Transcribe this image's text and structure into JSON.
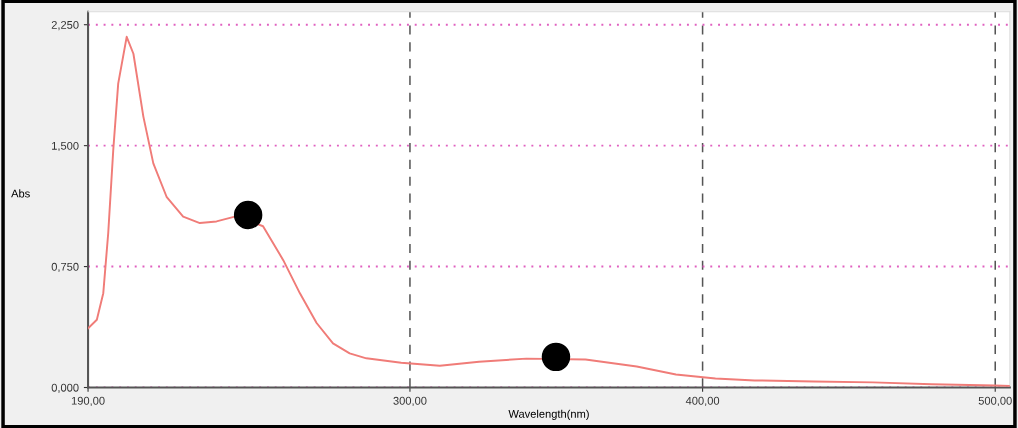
{
  "chart_data": {
    "type": "line",
    "xlabel": "Wavelength(nm)",
    "ylabel": "Abs",
    "xlim": [
      190,
      505
    ],
    "ylim": [
      0,
      2.33
    ],
    "xticks": [
      {
        "value": 190,
        "label": "190,00"
      },
      {
        "value": 300,
        "label": "300,00"
      },
      {
        "value": 400,
        "label": "400,00"
      },
      {
        "value": 500,
        "label": "500,00"
      }
    ],
    "yticks": [
      {
        "value": 0,
        "label": "0,000"
      },
      {
        "value": 0.75,
        "label": "0,750"
      },
      {
        "value": 1.5,
        "label": "1,500"
      },
      {
        "value": 2.25,
        "label": "2,250"
      }
    ],
    "grid": true,
    "legend": false,
    "series": [
      {
        "color": "#f07c78",
        "marker": "none",
        "line_style": "solid",
        "x": [
          190,
          193.0,
          195.2,
          196.9,
          198.6,
          200.3,
          203.2,
          205.5,
          208.9,
          212.3,
          216.9,
          222.5,
          228.2,
          233.9,
          240.8,
          249.8,
          256.7,
          262.4,
          268.1,
          273.7,
          279.4,
          285.1,
          297,
          310.2,
          323.6,
          339.8,
          360,
          377.5,
          390.9,
          404.4,
          417.8,
          438,
          458.2,
          478.3,
          499.8,
          505
        ],
        "values": [
          0.367,
          0.42,
          0.585,
          0.96,
          1.47,
          1.885,
          2.175,
          2.07,
          1.68,
          1.39,
          1.18,
          1.06,
          1.02,
          1.03,
          1.063,
          1.0,
          0.79,
          0.584,
          0.4,
          0.274,
          0.212,
          0.181,
          0.154,
          0.135,
          0.16,
          0.179,
          0.174,
          0.13,
          0.081,
          0.056,
          0.044,
          0.037,
          0.032,
          0.02,
          0.012,
          0.01
        ]
      },
      {
        "type": "scatter",
        "color": "#000000",
        "marker": "circle",
        "x": [
          244.7,
          349.9
        ],
        "values": [
          1.07,
          0.19
        ]
      }
    ]
  }
}
